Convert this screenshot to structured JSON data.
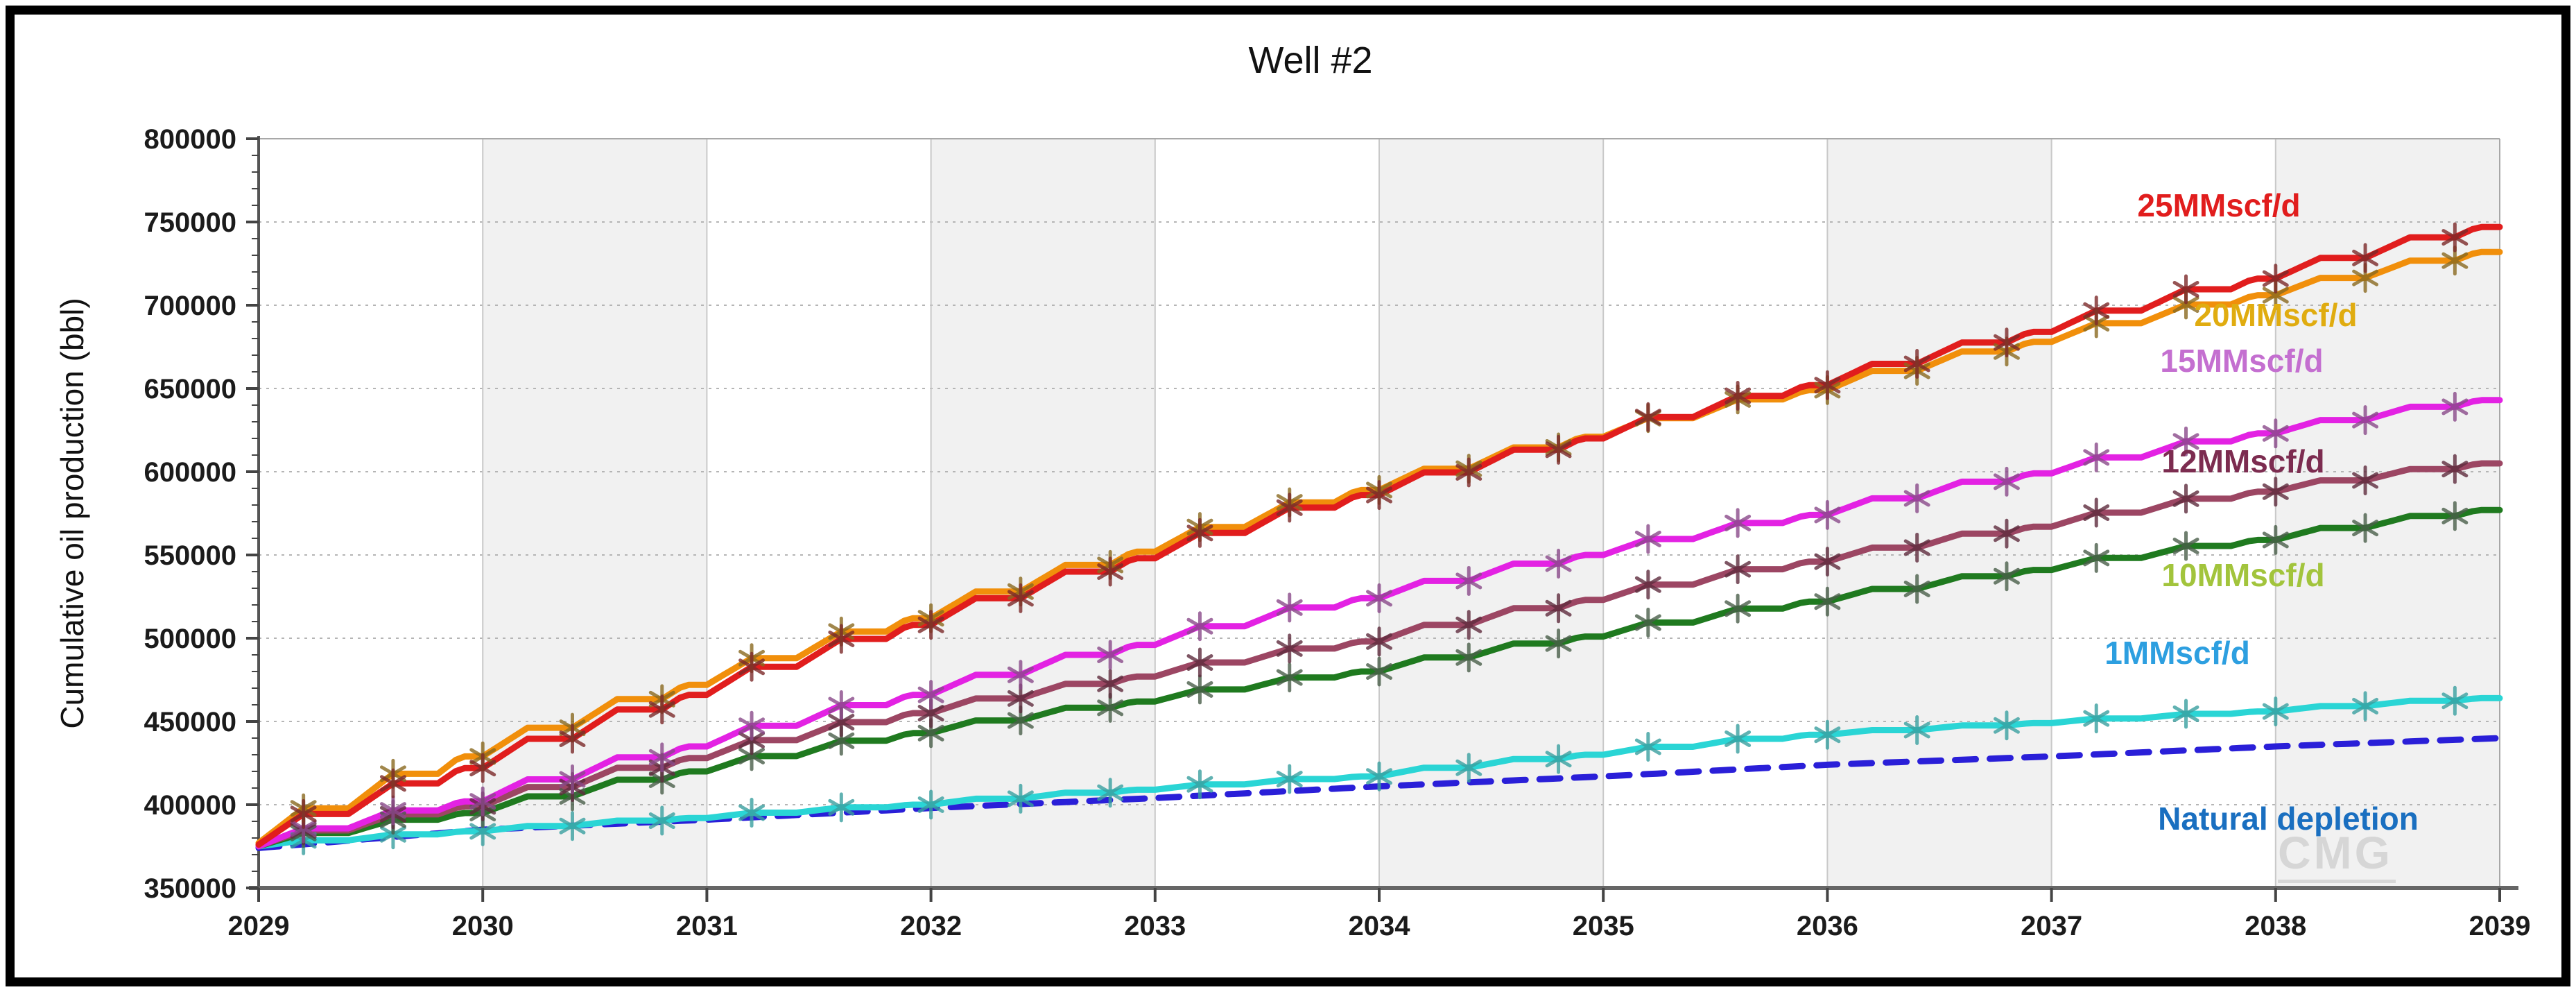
{
  "title": "Well #2",
  "watermark": "CMG",
  "y_axis": {
    "title": "Cumulative oil production (bbl)",
    "tick_labels": [
      "800000",
      "750000",
      "700000",
      "650000",
      "600000",
      "550000",
      "500000",
      "450000",
      "400000",
      "350000"
    ]
  },
  "x_axis": {
    "tick_labels": [
      "2029",
      "2030",
      "2031",
      "2032",
      "2033",
      "2034",
      "2035",
      "2036",
      "2037",
      "2038",
      "2039"
    ]
  },
  "colors": {
    "band": "#f1f1f1",
    "grid_h": "#b5b5b5",
    "grid_v": "#c9c9c9",
    "axis_dark": "#555555",
    "plot_border": "#a8a8a8",
    "watermark": "#d6d6d6"
  },
  "chart_data": {
    "type": "line",
    "title": "Well #2",
    "xlabel": "",
    "ylabel": "Cumulative oil production (bbl)",
    "x": [
      2029,
      2030,
      2031,
      2032,
      2033,
      2034,
      2035,
      2036,
      2037,
      2038,
      2039
    ],
    "xlim": [
      2029,
      2039
    ],
    "ylim": [
      350000,
      800000
    ],
    "y_tick_step": 50000,
    "grid": "horizontal dotted lines each 50000; vertical solid lines each year; alternating light-gray year bands (2030-31, 2032-33, 2034-35, 2036-37, 2038-39)",
    "legend_position": "inline labels at right side of plot",
    "series": [
      {
        "name": "25MMscf/d",
        "color": "#e11d1d",
        "label_color": "#e11d1d",
        "marker_color": "#7c2a2a",
        "style": "solid",
        "stepped": true,
        "markers": true,
        "label_x": 3200,
        "label_y": 312,
        "values": [
          376000,
          422000,
          466000,
          508000,
          548000,
          586000,
          620000,
          652000,
          684000,
          716000,
          747000
        ]
      },
      {
        "name": "20MMscf/d",
        "color": "#f18f0b",
        "label_color": "#e0ac10",
        "marker_color": "#8a6a20",
        "style": "solid",
        "stepped": true,
        "markers": true,
        "label_x": 3282,
        "label_y": 470,
        "values": [
          377000,
          429000,
          472000,
          512000,
          552000,
          589000,
          621000,
          649000,
          678000,
          706000,
          732000
        ]
      },
      {
        "name": "15MMscf/d",
        "color": "#e322e3",
        "label_color": "#c46fd0",
        "marker_color": "#8a4a8a",
        "style": "solid",
        "stepped": true,
        "markers": true,
        "label_x": 3233,
        "label_y": 536,
        "values": [
          375000,
          402000,
          435000,
          466000,
          496000,
          524000,
          550000,
          574000,
          599000,
          623000,
          643000
        ]
      },
      {
        "name": "12MMscf/d",
        "color": "#9c4663",
        "label_color": "#7c2c50",
        "marker_color": "#5f2c3e",
        "style": "solid",
        "stepped": true,
        "markers": true,
        "label_x": 3235,
        "label_y": 681,
        "values": [
          375000,
          399000,
          428000,
          455000,
          477000,
          498000,
          523000,
          546000,
          567000,
          588000,
          605000
        ]
      },
      {
        "name": "10MMscf/d",
        "color": "#1f7a1f",
        "label_color": "#a2c43c",
        "marker_color": "#4a5f4a",
        "style": "solid",
        "stepped": true,
        "markers": true,
        "label_x": 3235,
        "label_y": 845,
        "values": [
          375000,
          395000,
          420000,
          443000,
          462000,
          480000,
          501000,
          522000,
          541000,
          559000,
          577000
        ]
      },
      {
        "name": "1MMscf/d",
        "color": "#2ad5d5",
        "label_color": "#2d9fe0",
        "marker_color": "#3aa0a0",
        "style": "solid",
        "stepped": true,
        "markers": true,
        "label_x": 3140,
        "label_y": 957,
        "values": [
          375000,
          384000,
          392000,
          400000,
          409000,
          417000,
          430000,
          442000,
          449000,
          456000,
          464000
        ]
      },
      {
        "name": "Natural depletion",
        "color": "#2a1fd8",
        "label_color": "#1a6fc0",
        "marker_color": null,
        "style": "dashed",
        "stepped": false,
        "markers": false,
        "label_x": 3300,
        "label_y": 1196,
        "values": [
          374000,
          385000,
          391000,
          398000,
          404000,
          411000,
          417000,
          424000,
          429000,
          435000,
          440000
        ]
      }
    ]
  }
}
